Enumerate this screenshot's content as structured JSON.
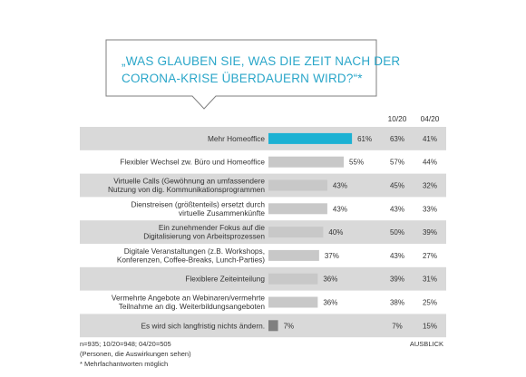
{
  "question_lines": [
    "„WAS GLAUBEN SIE, WAS DIE ZEIT NACH DER",
    "CORONA-KRISE ÜBERDAUERN WIRD?“*"
  ],
  "columns": [
    "10/20",
    "04/20"
  ],
  "footnotes": [
    "n=935;  10/20=948;  04/20=505",
    "(Personen, die Auswirkungen sehen)",
    "* Mehrfachantworten  möglich"
  ],
  "corner_label": "AUSBLICK",
  "colors": {
    "highlight_bar": "#1cb1d3",
    "bar": "#c8c8c8",
    "low_bar": "#7f7f7f",
    "shaded_row": "#d9d9d9",
    "question_text": "#2aa6c9"
  },
  "chart_data": {
    "type": "bar",
    "orientation": "horizontal",
    "categories": [
      [
        "Mehr Homeoffice"
      ],
      [
        "Flexibler Wechsel zw. Büro und Homeoffice"
      ],
      [
        "Virtuelle Calls (Gewöhnung an umfassendere",
        "Nutzung von dig. Kommunikationsprogrammen"
      ],
      [
        "Dienstreisen (größtenteils) ersetzt durch",
        "virtuelle Zusammenkünfte"
      ],
      [
        "Ein zunehmender  Fokus auf die",
        "Digitalisierung von Arbeitsprozessen"
      ],
      [
        "Digitale Veranstaltungen (z.B. Workshops,",
        "Konferenzen, Coffee-Breaks, Lunch-Parties)"
      ],
      [
        "Flexiblere Zeiteinteilung"
      ],
      [
        "Vermehrte Angebote an Webinaren/vermehrte",
        "Teilnahme an dig. Weiterbildungsangeboten"
      ],
      [
        "Es wird sich langfristig nichts ändern."
      ]
    ],
    "values": [
      61,
      55,
      43,
      43,
      40,
      37,
      36,
      36,
      7
    ],
    "value_labels": [
      "61%",
      "55%",
      "43%",
      "43%",
      "40%",
      "37%",
      "36%",
      "36%",
      "7%"
    ],
    "comparison": [
      {
        "name": "10/20",
        "values": [
          "63%",
          "57%",
          "45%",
          "43%",
          "50%",
          "43%",
          "39%",
          "38%",
          "7%"
        ]
      },
      {
        "name": "04/20",
        "values": [
          "41%",
          "44%",
          "32%",
          "33%",
          "39%",
          "27%",
          "31%",
          "25%",
          "15%"
        ]
      }
    ],
    "shaded_rows": [
      0,
      2,
      4,
      6,
      8
    ],
    "highlight_index": 0,
    "low_index": 8,
    "xlim": [
      0,
      100
    ]
  }
}
